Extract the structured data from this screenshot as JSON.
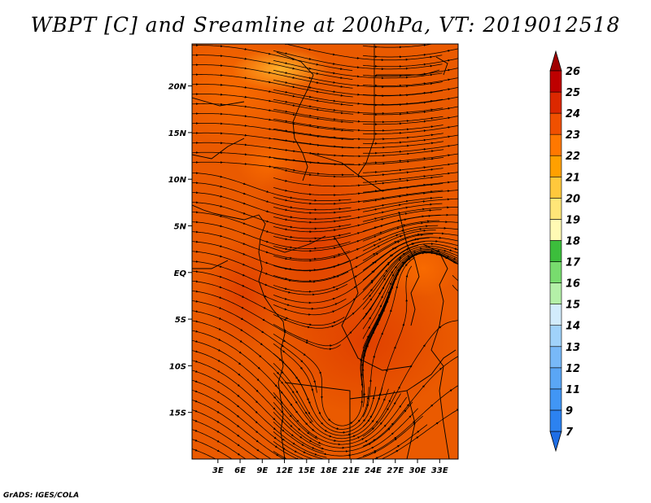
{
  "title": "WBPT [C] and Sreamline at 200hPa, VT: 2019012518",
  "footer": "GrADS: IGES/COLA",
  "map": {
    "lon_range": [
      -0.5,
      35.5
    ],
    "lat_range": [
      -20.0,
      24.5
    ],
    "x_ticks": [
      {
        "value": 3,
        "label": "3E"
      },
      {
        "value": 6,
        "label": "6E"
      },
      {
        "value": 9,
        "label": "9E"
      },
      {
        "value": 12,
        "label": "12E"
      },
      {
        "value": 15,
        "label": "15E"
      },
      {
        "value": 18,
        "label": "18E"
      },
      {
        "value": 21,
        "label": "21E"
      },
      {
        "value": 24,
        "label": "24E"
      },
      {
        "value": 27,
        "label": "27E"
      },
      {
        "value": 30,
        "label": "30E"
      },
      {
        "value": 33,
        "label": "33E"
      }
    ],
    "y_ticks": [
      {
        "value": 20,
        "label": "20N"
      },
      {
        "value": 15,
        "label": "15N"
      },
      {
        "value": 10,
        "label": "10N"
      },
      {
        "value": 5,
        "label": "5N"
      },
      {
        "value": 0,
        "label": "EQ"
      },
      {
        "value": -5,
        "label": "5S"
      },
      {
        "value": -10,
        "label": "10S"
      },
      {
        "value": -15,
        "label": "15S"
      }
    ]
  },
  "colorbar": {
    "levels": [
      "7",
      "9",
      "11",
      "12",
      "13",
      "14",
      "15",
      "16",
      "17",
      "18",
      "19",
      "20",
      "21",
      "22",
      "23",
      "24",
      "25",
      "26"
    ],
    "colors": [
      "#1e6ee6",
      "#2c82f0",
      "#4196f5",
      "#5aa6f5",
      "#78b9f8",
      "#a0d2fa",
      "#d2ecfc",
      "#b4f0a8",
      "#78dc6e",
      "#3cbe3c",
      "#fffab4",
      "#ffe678",
      "#ffc83c",
      "#ffa000",
      "#ff7800",
      "#f05000",
      "#dc2800",
      "#be0000",
      "#a00000"
    ]
  }
}
